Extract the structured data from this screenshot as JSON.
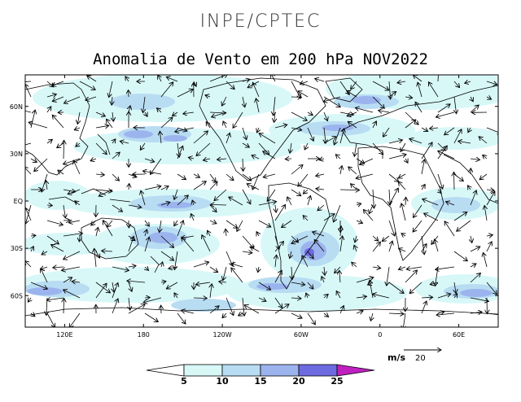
{
  "header": {
    "organization": "INPE/CPTEC",
    "title": "Anomalia de Vento em 200 hPa NOV2022"
  },
  "map": {
    "lat_labels": [
      "60N",
      "30N",
      "EQ",
      "30S",
      "60S"
    ],
    "lat_values": [
      60,
      30,
      0,
      -30,
      -60
    ],
    "lon_labels": [
      "120E",
      "180",
      "120W",
      "60W",
      "0",
      "60E"
    ],
    "lon_values": [
      120,
      180,
      240,
      300,
      360,
      420
    ],
    "lon_range": [
      90,
      450
    ],
    "lat_range": [
      -80,
      80
    ]
  },
  "colorbar": {
    "ticks": [
      "5",
      "10",
      "15",
      "20",
      "25"
    ],
    "colors": [
      "#ffffff",
      "#d8f8f8",
      "#b8dcf2",
      "#9cb4ee",
      "#6e6ae0",
      "#c020c0"
    ]
  },
  "reference_vector": {
    "unit_label": "m/s",
    "magnitude": "20"
  }
}
